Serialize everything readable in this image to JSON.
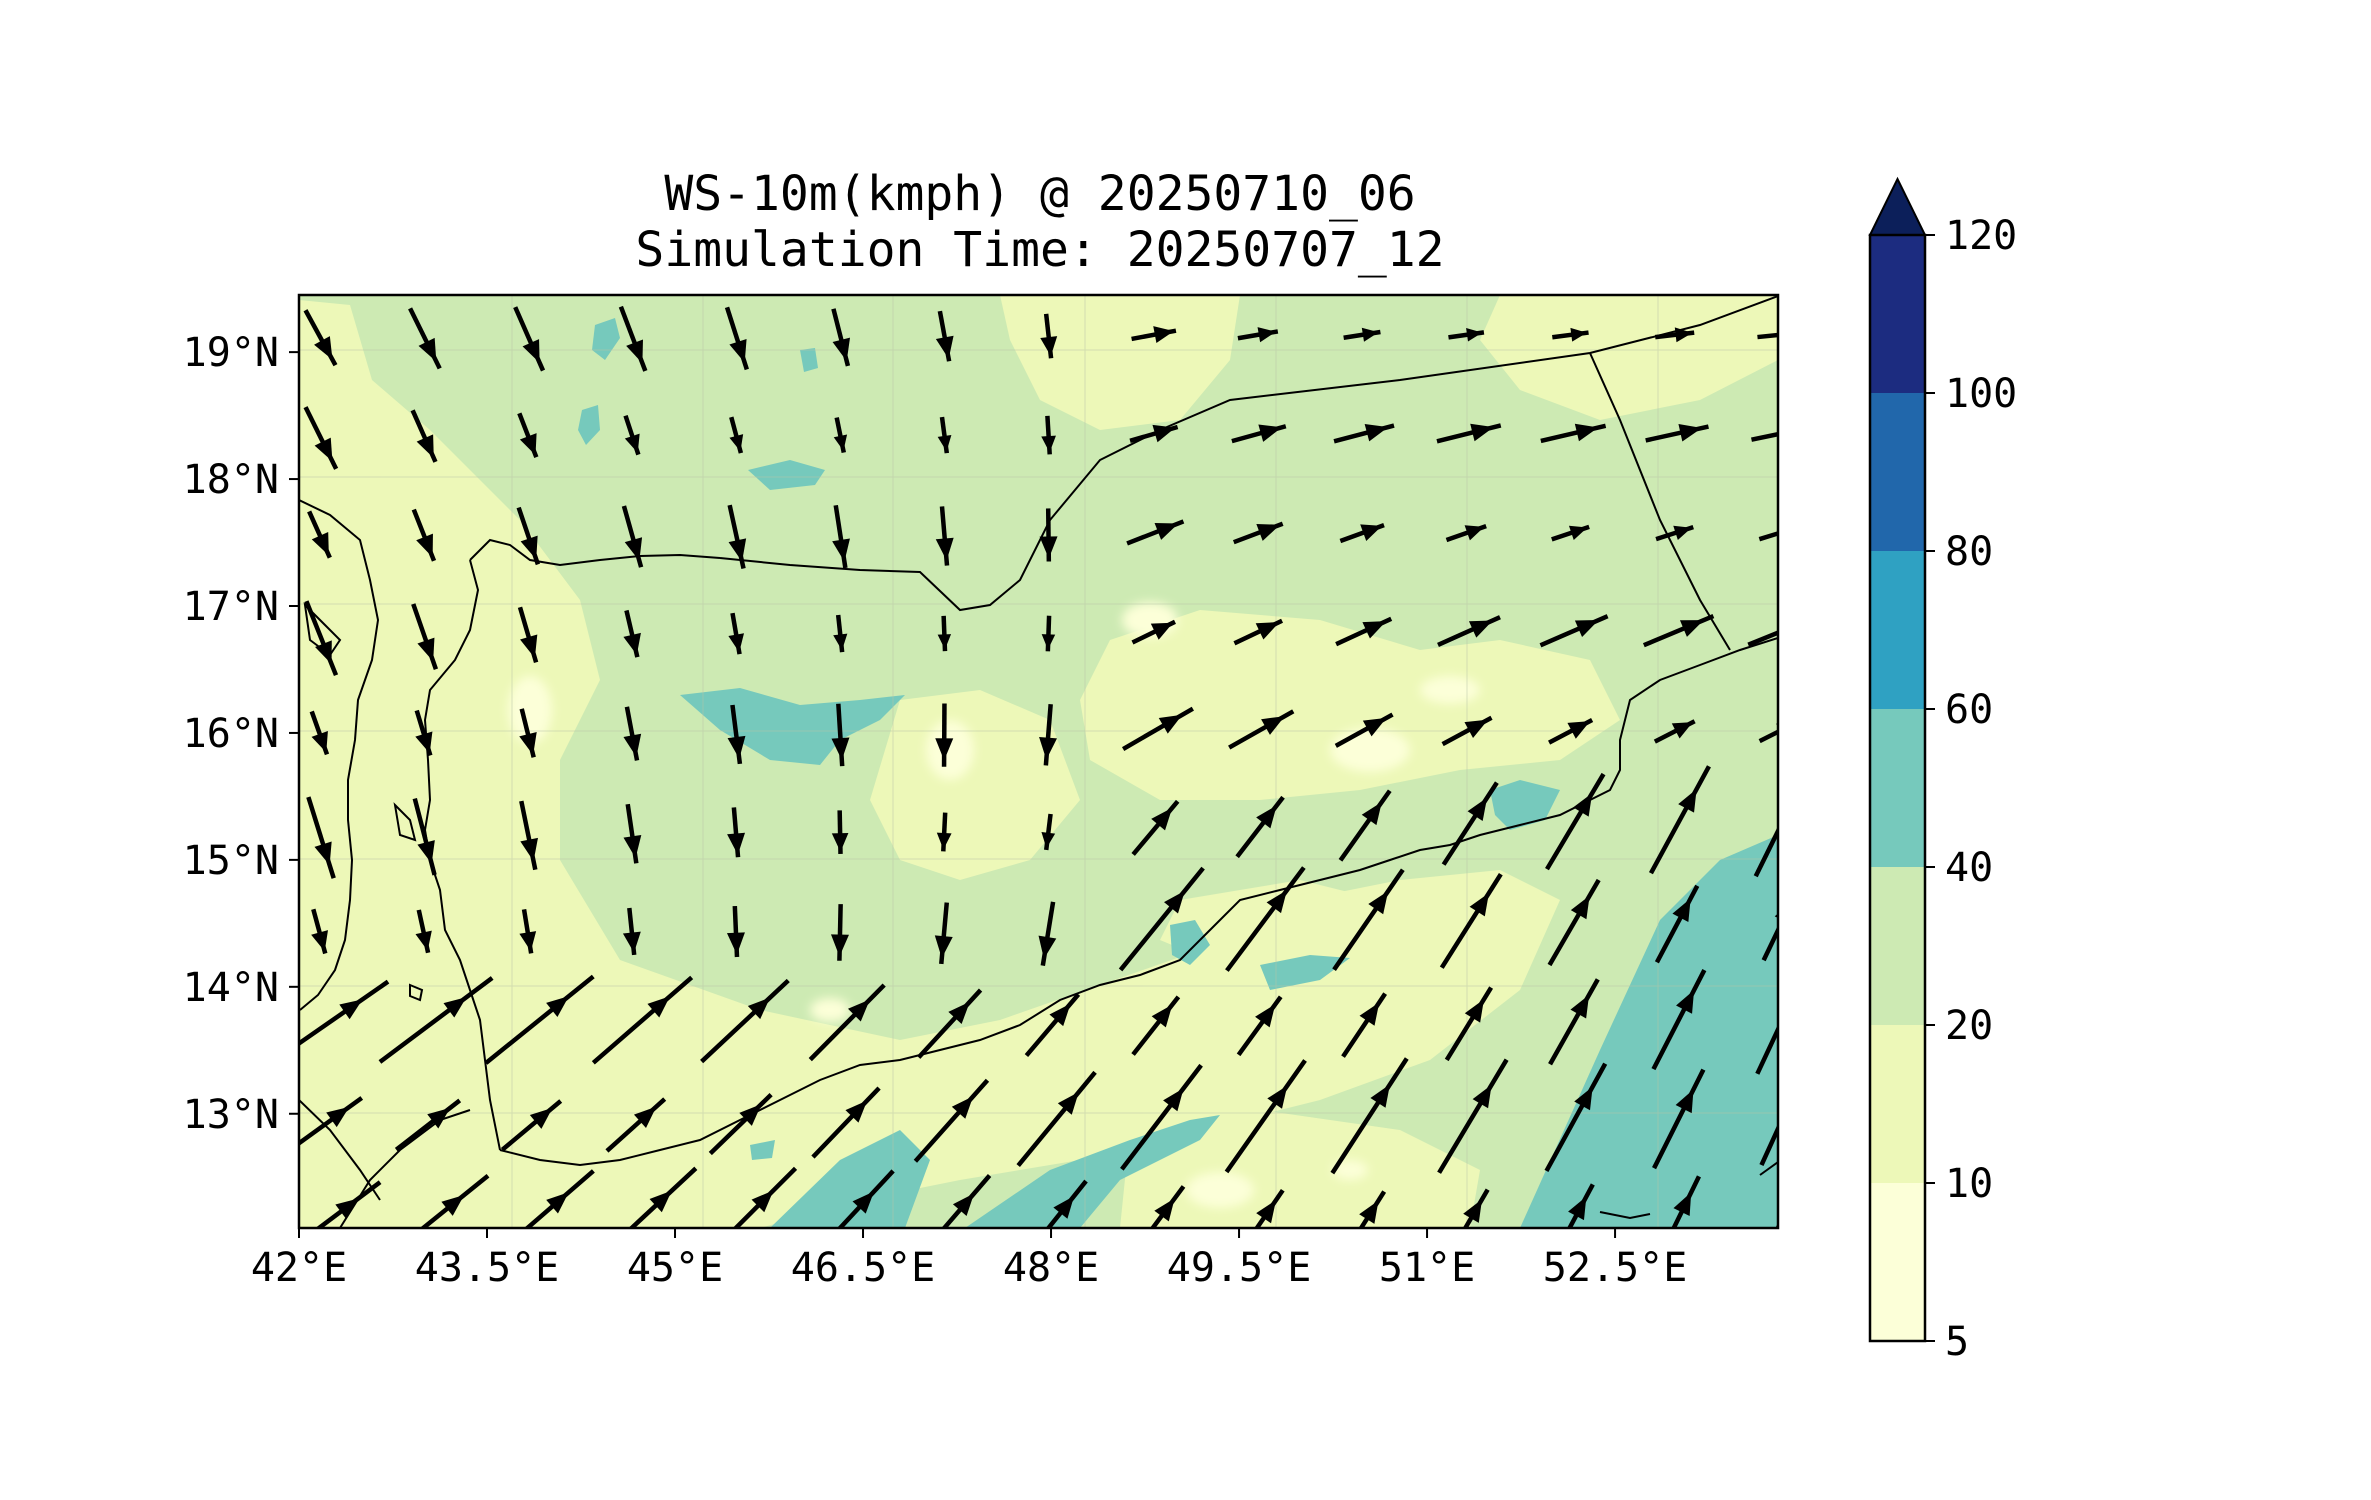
{
  "figure": {
    "title_line1": "WS-10m(kmph) @ 20250710_06",
    "title_line2": "Simulation Time: 20250707_12"
  },
  "map": {
    "lon_range": [
      42.0,
      53.8
    ],
    "lat_range": [
      12.1,
      19.45
    ],
    "x_ticks": [
      {
        "lon": 42.0,
        "label": "42°E"
      },
      {
        "lon": 43.5,
        "label": "43.5°E"
      },
      {
        "lon": 45.0,
        "label": "45°E"
      },
      {
        "lon": 46.5,
        "label": "46.5°E"
      },
      {
        "lon": 48.0,
        "label": "48°E"
      },
      {
        "lon": 49.5,
        "label": "49.5°E"
      },
      {
        "lon": 51.0,
        "label": "51°E"
      },
      {
        "lon": 52.5,
        "label": "52.5°E"
      }
    ],
    "y_ticks": [
      {
        "lat": 19,
        "label": "19°N"
      },
      {
        "lat": 18,
        "label": "18°N"
      },
      {
        "lat": 17,
        "label": "17°N"
      },
      {
        "lat": 16,
        "label": "16°N"
      },
      {
        "lat": 15,
        "label": "15°N"
      },
      {
        "lat": 14,
        "label": "14°N"
      },
      {
        "lat": 13,
        "label": "13°N"
      }
    ],
    "gridlines": true,
    "background_color": "#cdeab3",
    "coastline_color": "#000000",
    "vector_color": "#000000"
  },
  "colorbar": {
    "levels": [
      5,
      10,
      20,
      40,
      60,
      80,
      100,
      120
    ],
    "tick_labels": [
      "5",
      "10",
      "20",
      "40",
      "60",
      "80",
      "100",
      "120"
    ],
    "colors": [
      "#fcffd8",
      "#edf8b8",
      "#cdeab3",
      "#76c9bc",
      "#2fa1c2",
      "#2167ab",
      "#1c2c80"
    ],
    "extend_color": "#0c1f5a",
    "extend": "max"
  }
}
